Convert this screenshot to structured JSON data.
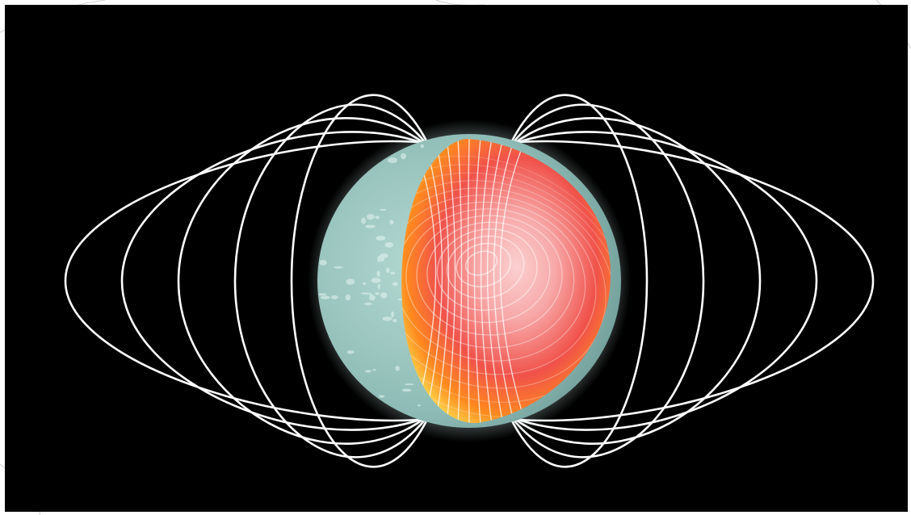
{
  "image": {
    "subject": "magnetar",
    "colors": {
      "background": "#000000",
      "frame": "#ffffff",
      "field_lines": "#ffffff",
      "crust": "#9cc4c0",
      "crust_glow": "#cfeeea",
      "core_center": "#f7a8a8",
      "core_mid": "#f0524a",
      "core_edge": "#ff8a1e",
      "core_rim": "#ffd04a"
    },
    "icon_names": [
      "magnetic-field-lines",
      "star-crust",
      "star-core"
    ]
  }
}
